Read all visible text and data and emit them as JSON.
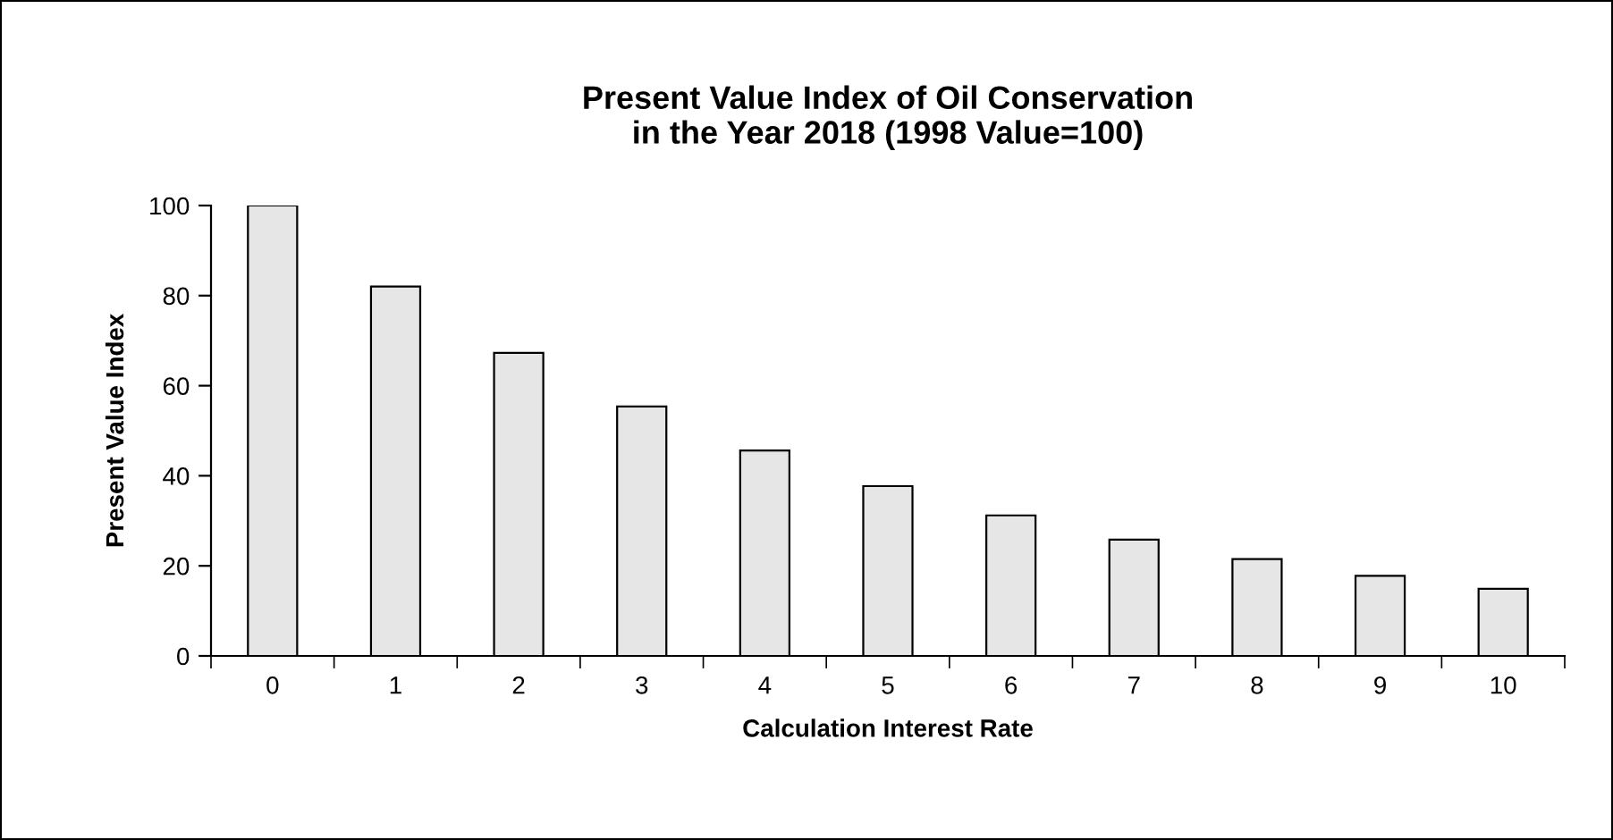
{
  "chart_data": {
    "type": "bar",
    "title": "Present Value Index of Oil Conservation\nin the Year 2018 (1998 Value=100)",
    "xlabel": "Calculation Interest Rate",
    "ylabel": "Present Value Index",
    "categories": [
      "0",
      "1",
      "2",
      "3",
      "4",
      "5",
      "6",
      "7",
      "8",
      "9",
      "10"
    ],
    "values": [
      100,
      82,
      67.3,
      55.4,
      45.6,
      37.7,
      31.2,
      25.8,
      21.5,
      17.8,
      14.9
    ],
    "color": "#e6e6e6",
    "ylim": [
      0,
      100
    ],
    "yticks": [
      0,
      20,
      40,
      60,
      80,
      100
    ],
    "grid": false,
    "legend": false
  }
}
